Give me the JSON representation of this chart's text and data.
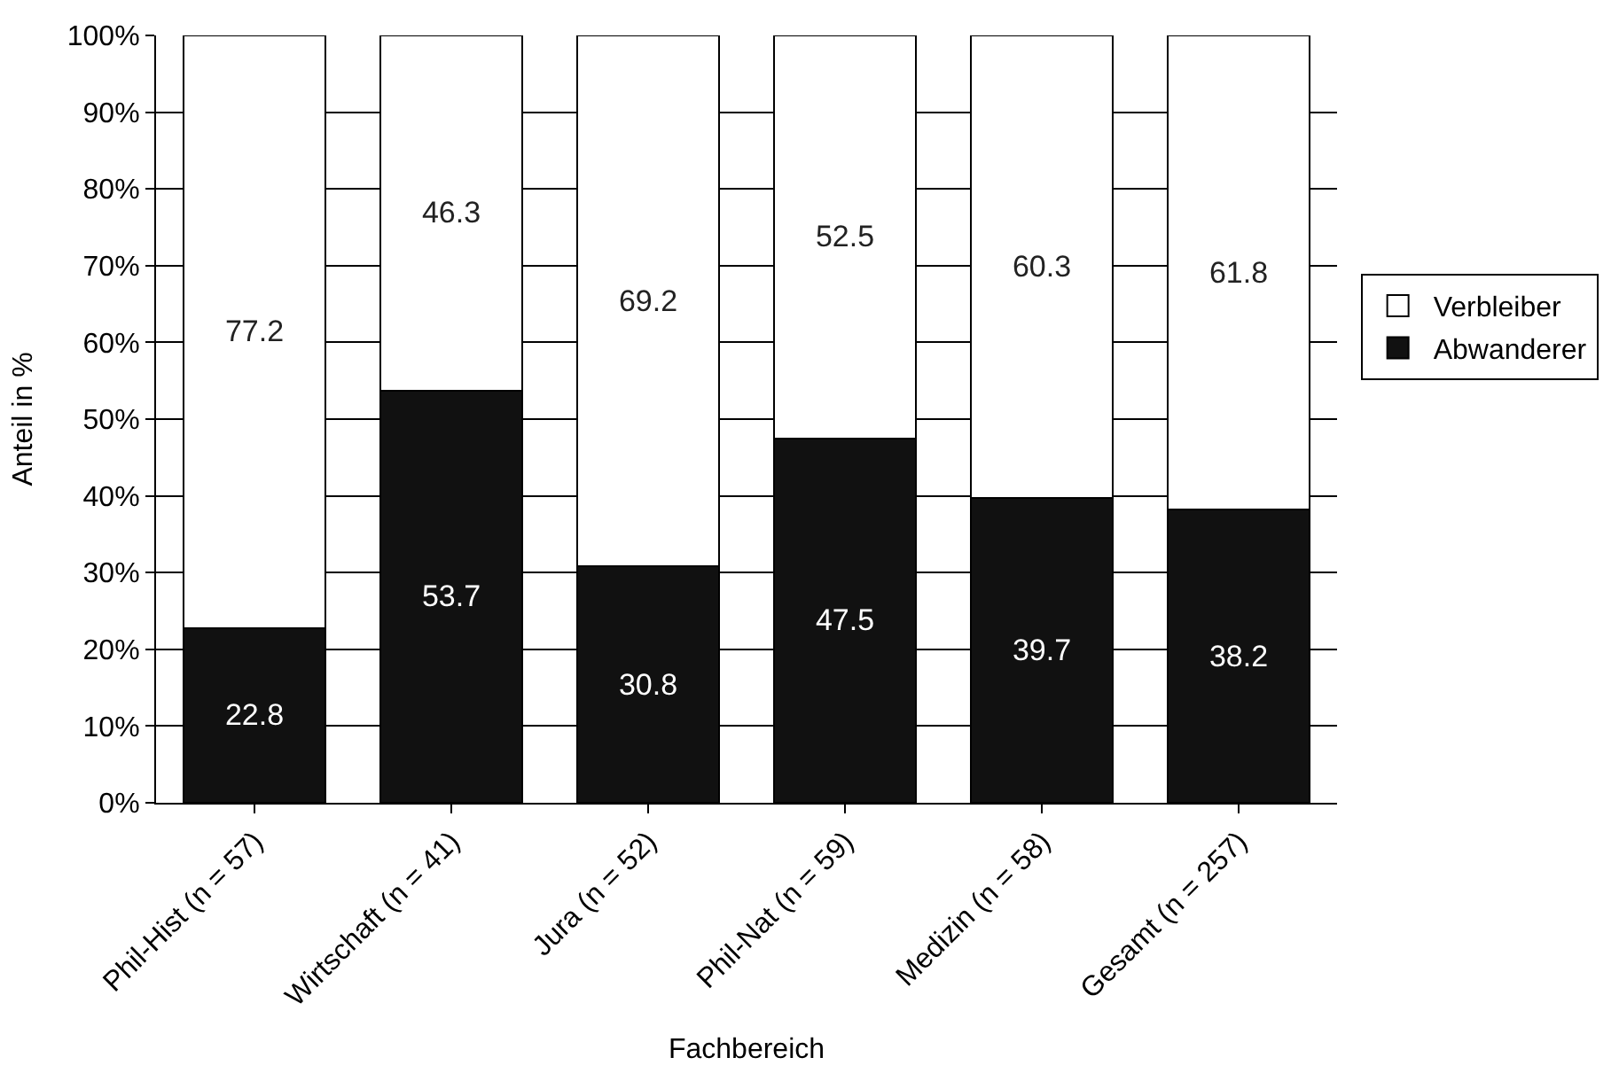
{
  "chart_data": {
    "type": "bar",
    "stacked": true,
    "xlabel": "Fachbereich",
    "ylabel": "Anteil in %",
    "categories": [
      "Phil-Hist (n = 57)",
      "Wirtschaft (n = 41)",
      "Jura (n = 52)",
      "Phil-Nat (n = 59)",
      "Medizin (n = 58)",
      "Gesamt (n = 257)"
    ],
    "series": [
      {
        "name": "Abwanderer",
        "color": "#111111",
        "values": [
          22.8,
          53.7,
          30.8,
          47.5,
          39.7,
          38.2
        ]
      },
      {
        "name": "Verbleiber",
        "color": "#ffffff",
        "values": [
          77.2,
          46.3,
          69.2,
          52.5,
          60.3,
          61.8
        ]
      }
    ],
    "ylim": [
      0,
      100
    ],
    "yticks": [
      {
        "value": 0,
        "label": "0%"
      },
      {
        "value": 10,
        "label": "10%"
      },
      {
        "value": 20,
        "label": "20%"
      },
      {
        "value": 30,
        "label": "30%"
      },
      {
        "value": 40,
        "label": "40%"
      },
      {
        "value": 50,
        "label": "50%"
      },
      {
        "value": 60,
        "label": "60%"
      },
      {
        "value": 70,
        "label": "70%"
      },
      {
        "value": 80,
        "label": "80%"
      },
      {
        "value": 90,
        "label": "90%"
      },
      {
        "value": 100,
        "label": "100%"
      }
    ],
    "grid": "y",
    "legend": "right",
    "data_labels": true
  }
}
